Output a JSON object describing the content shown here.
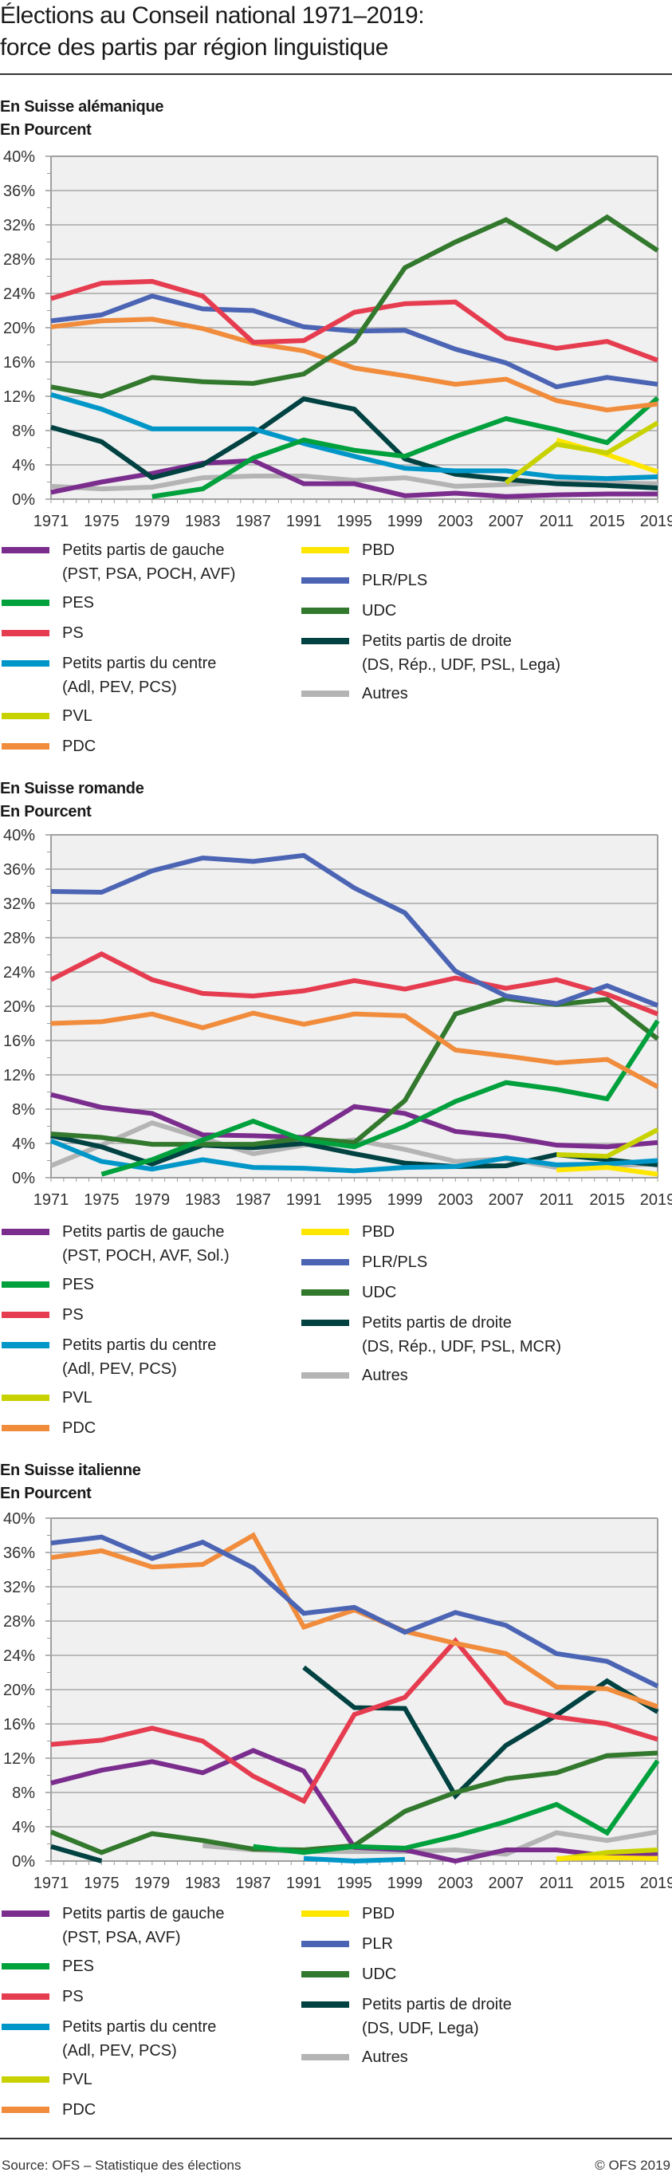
{
  "title_line1": "Élections au Conseil national 1971–2019:",
  "title_line2": "force des partis par région linguistique",
  "footer": {
    "source": "Source: OFS – Statistique des élections",
    "copyright": "© OFS 2019"
  },
  "colors": {
    "gauche": "#7b2d8e",
    "pes": "#00a03c",
    "ps": "#e63c50",
    "centre": "#0096c8",
    "pvl": "#c8d200",
    "pdc": "#f08c3c",
    "pbd": "#ffe600",
    "plr": "#4b64b4",
    "udc": "#32782d",
    "droite": "#004141",
    "autres": "#b4b4b4"
  },
  "chart_data": [
    {
      "type": "line",
      "title": "En Suisse alémanique",
      "ylabel": "En Pourcent",
      "xlabel": "",
      "x": [
        1971,
        1975,
        1979,
        1983,
        1987,
        1991,
        1995,
        1999,
        2003,
        2007,
        2011,
        2015,
        2019
      ],
      "ylim": [
        0,
        40
      ],
      "yticks": [
        "0%",
        "4%",
        "8%",
        "12%",
        "16%",
        "20%",
        "24%",
        "28%",
        "32%",
        "36%",
        "40%"
      ],
      "grid": true,
      "legend": "bottom",
      "series": [
        {
          "key": "autres",
          "name": "Autres",
          "values": [
            1.5,
            1.2,
            1.4,
            2.5,
            2.7,
            2.7,
            2.2,
            2.5,
            1.5,
            1.7,
            2.0,
            1.9,
            1.8
          ]
        },
        {
          "key": "gauche",
          "name": "Petits partis de gauche\n(PST, PSA, POCH, AVF)",
          "values": [
            0.8,
            2.0,
            3.0,
            4.2,
            4.5,
            1.8,
            1.8,
            0.4,
            0.7,
            0.3,
            0.5,
            0.6,
            0.6
          ]
        },
        {
          "key": "droite",
          "name": "Petits partis de droite\n(DS, Rép., UDF, PSL, Lega)",
          "values": [
            8.4,
            6.7,
            2.5,
            4.0,
            7.6,
            11.7,
            10.5,
            4.7,
            2.9,
            2.3,
            1.8,
            1.6,
            1.3
          ]
        },
        {
          "key": "centre",
          "name": "Petits partis du centre\n(Adl, PEV, PCS)",
          "values": [
            12.2,
            10.5,
            8.2,
            8.2,
            8.2,
            6.5,
            5.0,
            3.6,
            3.3,
            3.3,
            2.6,
            2.4,
            2.6
          ]
        },
        {
          "key": "pes",
          "name": "PES",
          "values": [
            null,
            null,
            0.3,
            1.2,
            4.8,
            6.9,
            5.7,
            5.0,
            7.3,
            9.4,
            8.1,
            6.6,
            11.8
          ]
        },
        {
          "key": "pbd",
          "name": "PBD",
          "values": [
            null,
            null,
            null,
            null,
            null,
            null,
            null,
            null,
            null,
            null,
            6.9,
            5.2,
            3.2
          ]
        },
        {
          "key": "pvl",
          "name": "PVL",
          "values": [
            null,
            null,
            null,
            null,
            null,
            null,
            null,
            null,
            null,
            1.9,
            6.4,
            5.4,
            8.9
          ]
        },
        {
          "key": "pdc",
          "name": "PDC",
          "values": [
            20.1,
            20.8,
            21.0,
            19.9,
            18.2,
            17.3,
            15.3,
            14.4,
            13.4,
            14.0,
            11.5,
            10.4,
            11.1
          ]
        },
        {
          "key": "plr",
          "name": "PLR/PLS",
          "values": [
            20.8,
            21.5,
            23.7,
            22.2,
            22.0,
            20.1,
            19.6,
            19.7,
            17.5,
            15.9,
            13.1,
            14.2,
            13.4
          ]
        },
        {
          "key": "ps",
          "name": "PS",
          "values": [
            23.4,
            25.2,
            25.4,
            23.7,
            18.3,
            18.5,
            21.8,
            22.8,
            23.0,
            18.8,
            17.6,
            18.4,
            16.2
          ]
        },
        {
          "key": "udc",
          "name": "UDC",
          "values": [
            13.1,
            12.0,
            14.2,
            13.7,
            13.5,
            14.6,
            18.4,
            27.0,
            30.0,
            32.6,
            29.2,
            32.9,
            29.0
          ]
        }
      ]
    },
    {
      "type": "line",
      "title": "En Suisse romande",
      "ylabel": "En Pourcent",
      "xlabel": "",
      "x": [
        1971,
        1975,
        1979,
        1983,
        1987,
        1991,
        1995,
        1999,
        2003,
        2007,
        2011,
        2015,
        2019
      ],
      "ylim": [
        0,
        40
      ],
      "yticks": [
        "0%",
        "4%",
        "8%",
        "12%",
        "16%",
        "20%",
        "24%",
        "28%",
        "32%",
        "36%",
        "40%"
      ],
      "grid": true,
      "legend": "bottom",
      "series": [
        {
          "key": "autres",
          "name": "Autres",
          "values": [
            1.4,
            3.8,
            6.4,
            4.6,
            2.8,
            3.8,
            4.4,
            3.3,
            1.9,
            2.2,
            1.2,
            1.4,
            1.6
          ]
        },
        {
          "key": "gauche",
          "name": "Petits partis de gauche\n(PST, POCH, AVF, Sol.)",
          "values": [
            9.7,
            8.2,
            7.5,
            5.0,
            4.9,
            4.7,
            8.3,
            7.5,
            5.4,
            4.8,
            3.8,
            3.6,
            4.1
          ]
        },
        {
          "key": "droite",
          "name": "Petits partis de droite\n(DS, Rép., UDF, PSL, MCR)",
          "values": [
            4.9,
            3.6,
            1.6,
            3.8,
            3.5,
            4.0,
            2.8,
            1.7,
            1.3,
            1.4,
            2.7,
            2.1,
            1.5
          ]
        },
        {
          "key": "centre",
          "name": "Petits partis du centre\n(Adl, PEV, PCS)",
          "values": [
            4.3,
            1.9,
            1.0,
            2.1,
            1.2,
            1.1,
            0.8,
            1.2,
            1.3,
            2.3,
            1.5,
            1.6,
            2.0
          ]
        },
        {
          "key": "udc",
          "name": "UDC",
          "values": [
            5.1,
            4.7,
            3.9,
            3.9,
            3.9,
            4.6,
            4.1,
            9.0,
            19.1,
            20.9,
            20.2,
            20.8,
            16.2
          ]
        },
        {
          "key": "pes",
          "name": "PES",
          "values": [
            null,
            0.4,
            2.1,
            4.4,
            6.6,
            4.4,
            3.6,
            6.0,
            8.9,
            11.1,
            10.3,
            9.2,
            18.3
          ]
        },
        {
          "key": "pbd",
          "name": "PBD",
          "values": [
            null,
            null,
            null,
            null,
            null,
            null,
            null,
            null,
            null,
            null,
            0.9,
            1.2,
            0.4
          ]
        },
        {
          "key": "pvl",
          "name": "PVL",
          "values": [
            null,
            null,
            null,
            null,
            null,
            null,
            null,
            null,
            null,
            null,
            2.7,
            2.5,
            5.6
          ]
        },
        {
          "key": "pdc",
          "name": "PDC",
          "values": [
            18.0,
            18.2,
            19.1,
            17.5,
            19.2,
            17.9,
            19.1,
            18.9,
            14.9,
            14.2,
            13.4,
            13.8,
            10.6
          ]
        },
        {
          "key": "ps",
          "name": "PS",
          "values": [
            23.1,
            26.1,
            23.1,
            21.5,
            21.2,
            21.8,
            23.0,
            22.0,
            23.3,
            22.1,
            23.1,
            21.4,
            19.1
          ]
        },
        {
          "key": "plr",
          "name": "PLR/PLS",
          "values": [
            33.4,
            33.3,
            35.8,
            37.3,
            36.9,
            37.6,
            33.8,
            30.9,
            24.1,
            21.2,
            20.3,
            22.4,
            20.1
          ]
        }
      ]
    },
    {
      "type": "line",
      "title": "En Suisse italienne",
      "ylabel": "En Pourcent",
      "xlabel": "",
      "x": [
        1971,
        1975,
        1979,
        1983,
        1987,
        1991,
        1995,
        1999,
        2003,
        2007,
        2011,
        2015,
        2019
      ],
      "ylim": [
        0,
        40
      ],
      "yticks": [
        "0%",
        "4%",
        "8%",
        "12%",
        "16%",
        "20%",
        "24%",
        "28%",
        "32%",
        "36%",
        "40%"
      ],
      "grid": true,
      "legend": "bottom",
      "series": [
        {
          "key": "autres",
          "name": "Autres",
          "values": [
            null,
            null,
            null,
            1.8,
            1.3,
            1.1,
            1.1,
            1.1,
            1.3,
            0.8,
            3.3,
            2.4,
            3.4
          ]
        },
        {
          "key": "centre",
          "name": "Petits partis du centre\n(Adl, PEV, PCS)",
          "values": [
            null,
            null,
            null,
            null,
            null,
            0.3,
            0.0,
            0.2,
            null,
            null,
            null,
            null,
            null
          ]
        },
        {
          "key": "droite",
          "name": "Petits partis de droite\n(DS, UDF, Lega)",
          "values": [
            1.7,
            0.0,
            null,
            null,
            null,
            22.6,
            17.9,
            17.8,
            7.6,
            13.5,
            17.0,
            21.0,
            17.4
          ]
        },
        {
          "key": "gauche",
          "name": "Petits partis de gauche\n(PST, PSA, AVF)",
          "values": [
            9.1,
            10.6,
            11.6,
            10.3,
            12.9,
            10.5,
            1.6,
            1.3,
            0.0,
            1.3,
            1.3,
            0.6,
            0.9
          ]
        },
        {
          "key": "udc",
          "name": "UDC",
          "values": [
            3.4,
            1.0,
            3.2,
            2.4,
            1.4,
            1.3,
            1.8,
            5.8,
            8.0,
            9.6,
            10.3,
            12.3,
            12.6
          ]
        },
        {
          "key": "pes",
          "name": "PES",
          "values": [
            null,
            null,
            null,
            null,
            1.7,
            1.0,
            1.7,
            1.5,
            2.9,
            4.6,
            6.6,
            3.3,
            11.7
          ]
        },
        {
          "key": "pvl",
          "name": "PVL",
          "values": [
            null,
            null,
            null,
            null,
            null,
            null,
            null,
            null,
            null,
            null,
            0.2,
            1.0,
            1.3
          ]
        },
        {
          "key": "pbd",
          "name": "PBD",
          "values": [
            null,
            null,
            null,
            null,
            null,
            null,
            null,
            null,
            null,
            null,
            0.3,
            0.4,
            0.3
          ]
        },
        {
          "key": "ps",
          "name": "PS",
          "values": [
            13.6,
            14.1,
            15.5,
            14.0,
            9.9,
            7.0,
            17.1,
            19.1,
            25.7,
            18.5,
            16.8,
            16.0,
            14.2
          ]
        },
        {
          "key": "pdc",
          "name": "PDC",
          "values": [
            35.4,
            36.2,
            34.3,
            34.6,
            38.0,
            27.3,
            29.3,
            26.8,
            25.4,
            24.2,
            20.3,
            20.1,
            18.0
          ]
        },
        {
          "key": "plr",
          "name": "PLR",
          "values": [
            37.1,
            37.8,
            35.3,
            37.2,
            34.2,
            28.9,
            29.6,
            26.7,
            29.0,
            27.5,
            24.2,
            23.3,
            20.4
          ]
        }
      ]
    }
  ],
  "legends": [
    {
      "left": [
        {
          "key": "gauche",
          "l1": "Petits partis de gauche",
          "l2": "(PST, PSA, POCH, AVF)"
        },
        {
          "key": "pes",
          "l1": "PES",
          "l2": ""
        },
        {
          "key": "ps",
          "l1": "PS",
          "l2": ""
        },
        {
          "key": "centre",
          "l1": "Petits partis du centre",
          "l2": "(Adl, PEV, PCS)"
        },
        {
          "key": "pvl",
          "l1": "PVL",
          "l2": ""
        },
        {
          "key": "pdc",
          "l1": "PDC",
          "l2": ""
        }
      ],
      "right": [
        {
          "key": "pbd",
          "l1": "PBD",
          "l2": ""
        },
        {
          "key": "plr",
          "l1": "PLR/PLS",
          "l2": ""
        },
        {
          "key": "udc",
          "l1": "UDC",
          "l2": ""
        },
        {
          "key": "droite",
          "l1": "Petits partis de droite",
          "l2": "(DS, Rép., UDF, PSL, Lega)"
        },
        {
          "key": "autres",
          "l1": "Autres",
          "l2": ""
        }
      ]
    },
    {
      "left": [
        {
          "key": "gauche",
          "l1": "Petits partis de gauche",
          "l2": "(PST, POCH, AVF, Sol.)"
        },
        {
          "key": "pes",
          "l1": "PES",
          "l2": ""
        },
        {
          "key": "ps",
          "l1": "PS",
          "l2": ""
        },
        {
          "key": "centre",
          "l1": "Petits partis du centre",
          "l2": "(Adl, PEV, PCS)"
        },
        {
          "key": "pvl",
          "l1": "PVL",
          "l2": ""
        },
        {
          "key": "pdc",
          "l1": "PDC",
          "l2": ""
        }
      ],
      "right": [
        {
          "key": "pbd",
          "l1": "PBD",
          "l2": ""
        },
        {
          "key": "plr",
          "l1": "PLR/PLS",
          "l2": ""
        },
        {
          "key": "udc",
          "l1": "UDC",
          "l2": ""
        },
        {
          "key": "droite",
          "l1": "Petits partis de droite",
          "l2": "(DS, Rép., UDF, PSL, MCR)"
        },
        {
          "key": "autres",
          "l1": "Autres",
          "l2": ""
        }
      ]
    },
    {
      "left": [
        {
          "key": "gauche",
          "l1": "Petits partis de gauche",
          "l2": "(PST, PSA, AVF)"
        },
        {
          "key": "pes",
          "l1": "PES",
          "l2": ""
        },
        {
          "key": "ps",
          "l1": "PS",
          "l2": ""
        },
        {
          "key": "centre",
          "l1": "Petits partis du centre",
          "l2": "(Adl, PEV, PCS)"
        },
        {
          "key": "pvl",
          "l1": "PVL",
          "l2": ""
        },
        {
          "key": "pdc",
          "l1": "PDC",
          "l2": ""
        }
      ],
      "right": [
        {
          "key": "pbd",
          "l1": "PBD",
          "l2": ""
        },
        {
          "key": "plr",
          "l1": "PLR",
          "l2": ""
        },
        {
          "key": "udc",
          "l1": "UDC",
          "l2": ""
        },
        {
          "key": "droite",
          "l1": "Petits partis de droite",
          "l2": "(DS, UDF, Lega)"
        },
        {
          "key": "autres",
          "l1": "Autres",
          "l2": ""
        }
      ]
    }
  ]
}
